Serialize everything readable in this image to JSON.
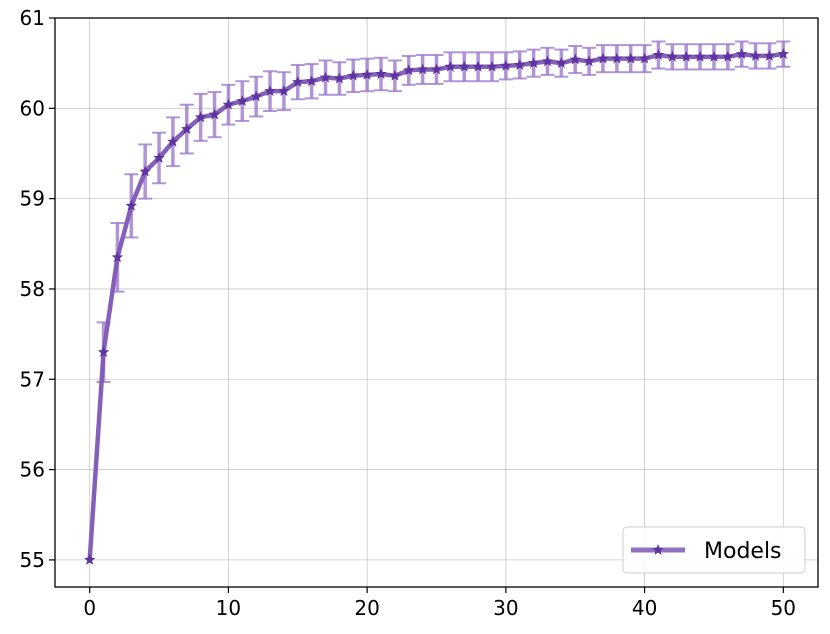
{
  "chart_data": {
    "type": "line",
    "title": "",
    "xlabel": "",
    "ylabel": "",
    "xlim": [
      -2.5,
      52.5
    ],
    "ylim": [
      54.7,
      61.0
    ],
    "xticks": [
      0,
      10,
      20,
      30,
      40,
      50
    ],
    "yticks": [
      55,
      56,
      57,
      58,
      59,
      60,
      61
    ],
    "grid": true,
    "legend": {
      "position": "bottom-right",
      "entries": [
        "Models"
      ]
    },
    "series": [
      {
        "name": "Models",
        "color": "#7e57b4",
        "marker": "star",
        "x": [
          0,
          1,
          2,
          3,
          4,
          5,
          6,
          7,
          8,
          9,
          10,
          11,
          12,
          13,
          14,
          15,
          16,
          17,
          18,
          19,
          20,
          21,
          22,
          23,
          24,
          25,
          26,
          27,
          28,
          29,
          30,
          31,
          32,
          33,
          34,
          35,
          36,
          37,
          38,
          39,
          40,
          41,
          42,
          43,
          44,
          45,
          46,
          47,
          48,
          49,
          50
        ],
        "y": [
          55.0,
          57.3,
          58.35,
          58.92,
          59.3,
          59.45,
          59.63,
          59.77,
          59.9,
          59.93,
          60.04,
          60.08,
          60.13,
          60.19,
          60.19,
          60.29,
          60.3,
          60.34,
          60.33,
          60.36,
          60.37,
          60.38,
          60.36,
          60.42,
          60.43,
          60.43,
          60.46,
          60.46,
          60.46,
          60.46,
          60.47,
          60.48,
          60.5,
          60.52,
          60.5,
          60.54,
          60.52,
          60.55,
          60.55,
          60.55,
          60.55,
          60.59,
          60.57,
          60.57,
          60.57,
          60.57,
          60.57,
          60.6,
          60.58,
          60.58,
          60.6
        ],
        "error": [
          0,
          0.33,
          0.38,
          0.35,
          0.3,
          0.28,
          0.27,
          0.27,
          0.26,
          0.25,
          0.22,
          0.22,
          0.22,
          0.22,
          0.21,
          0.19,
          0.19,
          0.19,
          0.18,
          0.18,
          0.18,
          0.18,
          0.17,
          0.16,
          0.16,
          0.16,
          0.16,
          0.16,
          0.16,
          0.16,
          0.15,
          0.15,
          0.15,
          0.15,
          0.15,
          0.15,
          0.15,
          0.15,
          0.15,
          0.15,
          0.15,
          0.15,
          0.14,
          0.14,
          0.14,
          0.14,
          0.14,
          0.14,
          0.14,
          0.14,
          0.14
        ]
      }
    ]
  }
}
